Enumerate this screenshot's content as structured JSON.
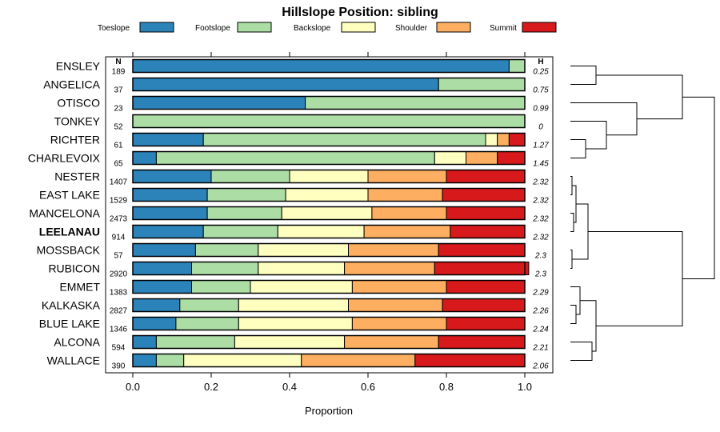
{
  "chart_data": {
    "type": "bar",
    "stacked": true,
    "orientation": "horizontal",
    "title": "Hillslope Position: sibling",
    "xlabel": "Proportion",
    "xlim": [
      0,
      1
    ],
    "xticks": [
      "0.0",
      "0.2",
      "0.4",
      "0.6",
      "0.8",
      "1.0"
    ],
    "n_header": "N",
    "h_header": "H",
    "highlight": "LEELANAU",
    "legend": [
      {
        "name": "Toeslope",
        "color": "#2b83ba"
      },
      {
        "name": "Footslope",
        "color": "#abdda4"
      },
      {
        "name": "Backslope",
        "color": "#ffffbf"
      },
      {
        "name": "Shoulder",
        "color": "#fdae61"
      },
      {
        "name": "Summit",
        "color": "#d7191c"
      }
    ],
    "categories": [
      "ENSLEY",
      "ANGELICA",
      "OTISCO",
      "TONKEY",
      "RICHTER",
      "CHARLEVOIX",
      "NESTER",
      "EAST LAKE",
      "MANCELONA",
      "LEELANAU",
      "MOSSBACK",
      "RUBICON",
      "EMMET",
      "KALKASKA",
      "BLUE LAKE",
      "ALCONA",
      "WALLACE"
    ],
    "n": [
      "189",
      "37",
      "23",
      "52",
      "61",
      "65",
      "1407",
      "1529",
      "2473",
      "914",
      "57",
      "2920",
      "1383",
      "2827",
      "1346",
      "594",
      "390"
    ],
    "h": [
      "0.25",
      "0.75",
      "0.99",
      "0",
      "1.27",
      "1.45",
      "2.32",
      "2.32",
      "2.32",
      "2.32",
      "2.3",
      "2.3",
      "2.29",
      "2.26",
      "2.24",
      "2.21",
      "2.06"
    ],
    "series": [
      {
        "name": "Toeslope",
        "values": [
          0.96,
          0.78,
          0.44,
          0.0,
          0.18,
          0.06,
          0.2,
          0.19,
          0.19,
          0.18,
          0.16,
          0.15,
          0.15,
          0.12,
          0.11,
          0.06,
          0.06
        ]
      },
      {
        "name": "Footslope",
        "values": [
          0.04,
          0.22,
          0.56,
          1.0,
          0.72,
          0.71,
          0.2,
          0.2,
          0.19,
          0.19,
          0.16,
          0.17,
          0.15,
          0.15,
          0.16,
          0.2,
          0.07
        ]
      },
      {
        "name": "Backslope",
        "values": [
          0.0,
          0.0,
          0.0,
          0.0,
          0.03,
          0.08,
          0.2,
          0.21,
          0.23,
          0.22,
          0.23,
          0.22,
          0.26,
          0.28,
          0.29,
          0.28,
          0.3
        ]
      },
      {
        "name": "Shoulder",
        "values": [
          0.0,
          0.0,
          0.0,
          0.0,
          0.03,
          0.08,
          0.2,
          0.19,
          0.19,
          0.22,
          0.23,
          0.23,
          0.24,
          0.24,
          0.24,
          0.24,
          0.29
        ]
      },
      {
        "name": "Summit",
        "values": [
          0.0,
          0.0,
          0.0,
          0.0,
          0.04,
          0.07,
          0.2,
          0.21,
          0.2,
          0.19,
          0.22,
          0.24,
          0.2,
          0.21,
          0.2,
          0.22,
          0.28
        ]
      }
    ],
    "dendrogram": "hierarchical clustering of the 17 series (right side)"
  }
}
